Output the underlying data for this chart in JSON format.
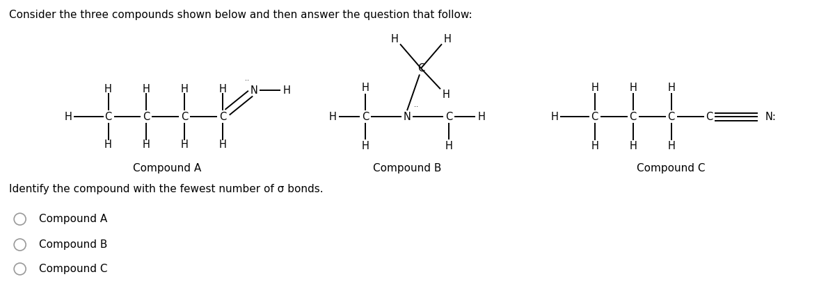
{
  "title": "Consider the three compounds shown below and then answer the question that follow:",
  "question": "Identify the compound with the fewest number of σ bonds.",
  "options": [
    "Compound A",
    "Compound B",
    "Compound C"
  ],
  "compound_labels": [
    "Compound A",
    "Compound B",
    "Compound C"
  ],
  "bg_color": "#ffffff",
  "text_color": "#000000",
  "font_size_title": 11,
  "font_size_label": 11,
  "font_size_atom": 10.5
}
